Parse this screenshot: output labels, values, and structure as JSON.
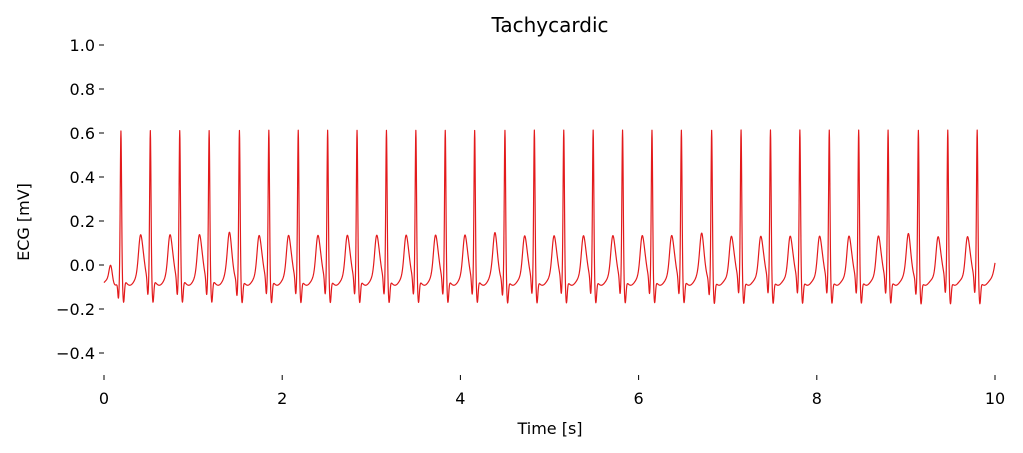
{
  "chart_data": {
    "type": "line",
    "title": "Tachycardic",
    "xlabel": "Time [s]",
    "ylabel": "ECG [mV]",
    "xlim": [
      0,
      10
    ],
    "ylim": [
      -0.5,
      1.0
    ],
    "xticks": [
      0,
      2,
      4,
      6,
      8,
      10
    ],
    "xtick_labels": [
      "0",
      "2",
      "4",
      "6",
      "8",
      "10"
    ],
    "yticks": [
      -0.4,
      -0.2,
      0.0,
      0.2,
      0.4,
      0.6,
      0.8,
      1.0
    ],
    "ytick_labels": [
      "−0.4",
      "−0.2",
      "0.0",
      "0.2",
      "0.4",
      "0.6",
      "0.8",
      "1.0"
    ],
    "grid": false,
    "line_color": "#e31a1c",
    "series": [
      {
        "beat_times_s": [
          0.19,
          0.52,
          0.85,
          1.18,
          1.52,
          1.85,
          2.18,
          2.51,
          2.84,
          3.17,
          3.5,
          3.83,
          4.16,
          4.5,
          4.83,
          5.16,
          5.49,
          5.82,
          6.15,
          6.48,
          6.82,
          7.15,
          7.48,
          7.81,
          8.14,
          8.47,
          8.8,
          9.14,
          9.47,
          9.8
        ],
        "r_peak_mV": 0.6,
        "s_trough_mV": -0.19,
        "t_wave_peak_mV": 0.08,
        "baseline_mV": -0.08
      }
    ]
  }
}
